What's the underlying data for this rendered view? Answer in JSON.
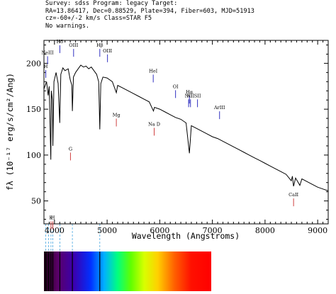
{
  "header": {
    "line1": "Survey: sdss  Program: legacy  Target:",
    "line2": "RA=13.86417, Dec=0.88529, Plate=394, Fiber=603, MJD=51913",
    "line3": "cz=-60+/-2 km/s  Class=STAR F5",
    "line4": "No warnings."
  },
  "chart_data": {
    "type": "line",
    "title": "",
    "xlabel": "Wavelength (Angstroms)",
    "ylabel": "fλ (10⁻¹⁷ erg/s/cm²/Ang)",
    "xlim": [
      3800,
      9200
    ],
    "ylim": [
      25,
      225
    ],
    "x_ticks": [
      4000,
      5000,
      6000,
      7000,
      8000,
      9000
    ],
    "y_ticks": [
      50,
      100,
      150,
      200
    ],
    "grid": false,
    "series": [
      {
        "color": "#000000",
        "points": [
          [
            3800,
            172
          ],
          [
            3850,
            180
          ],
          [
            3880,
            165
          ],
          [
            3900,
            175
          ],
          [
            3930,
            95
          ],
          [
            3940,
            170
          ],
          [
            3960,
            160
          ],
          [
            3970,
            110
          ],
          [
            3990,
            180
          ],
          [
            4030,
            190
          ],
          [
            4070,
            178
          ],
          [
            4100,
            135
          ],
          [
            4120,
            188
          ],
          [
            4160,
            195
          ],
          [
            4200,
            192
          ],
          [
            4260,
            194
          ],
          [
            4300,
            182
          ],
          [
            4330,
            176
          ],
          [
            4340,
            148
          ],
          [
            4360,
            185
          ],
          [
            4400,
            190
          ],
          [
            4450,
            194
          ],
          [
            4500,
            198
          ],
          [
            4550,
            196
          ],
          [
            4600,
            197
          ],
          [
            4650,
            194
          ],
          [
            4700,
            196
          ],
          [
            4750,
            192
          ],
          [
            4800,
            188
          ],
          [
            4840,
            180
          ],
          [
            4861,
            128
          ],
          [
            4880,
            178
          ],
          [
            4920,
            185
          ],
          [
            5000,
            184
          ],
          [
            5100,
            180
          ],
          [
            5175,
            168
          ],
          [
            5200,
            176
          ],
          [
            5300,
            173
          ],
          [
            5400,
            170
          ],
          [
            5500,
            167
          ],
          [
            5600,
            164
          ],
          [
            5700,
            161
          ],
          [
            5800,
            158
          ],
          [
            5880,
            148
          ],
          [
            5900,
            152
          ],
          [
            6000,
            150
          ],
          [
            6100,
            147
          ],
          [
            6200,
            144
          ],
          [
            6300,
            141
          ],
          [
            6400,
            139
          ],
          [
            6500,
            135
          ],
          [
            6563,
            102
          ],
          [
            6600,
            132
          ],
          [
            6700,
            129
          ],
          [
            6800,
            126
          ],
          [
            6900,
            123
          ],
          [
            7000,
            120
          ],
          [
            7100,
            118
          ],
          [
            7200,
            115
          ],
          [
            7300,
            112
          ],
          [
            7400,
            109
          ],
          [
            7500,
            106
          ],
          [
            7600,
            103
          ],
          [
            7700,
            100
          ],
          [
            7800,
            97
          ],
          [
            7900,
            94
          ],
          [
            8000,
            91
          ],
          [
            8100,
            88
          ],
          [
            8200,
            85
          ],
          [
            8300,
            82
          ],
          [
            8400,
            79
          ],
          [
            8498,
            72
          ],
          [
            8520,
            77
          ],
          [
            8542,
            66
          ],
          [
            8580,
            75
          ],
          [
            8662,
            67
          ],
          [
            8700,
            74
          ],
          [
            8800,
            71
          ],
          [
            8900,
            68
          ],
          [
            9000,
            65
          ],
          [
            9100,
            63
          ],
          [
            9200,
            61
          ]
        ]
      }
    ],
    "lines": [
      {
        "label": "H",
        "wave": 3835,
        "color": "#3030c0",
        "kind": "emission",
        "label_level": 195
      },
      {
        "label": "NeIII",
        "wave": 3869,
        "color": "#3030c0",
        "kind": "emission",
        "label_level": 210
      },
      {
        "label": "K",
        "wave": 3934,
        "color": "#d04040",
        "kind": "absorption",
        "label_level": 30
      },
      {
        "label": "H",
        "wave": 3969,
        "color": "#d04040",
        "kind": "absorption",
        "label_level": 30
      },
      {
        "label": "Hδ",
        "wave": 4102,
        "color": "#3030c0",
        "kind": "emission",
        "label_level": 222
      },
      {
        "label": "G",
        "wave": 4304,
        "color": "#d04040",
        "kind": "absorption",
        "label_level": 105
      },
      {
        "label": "OIII",
        "wave": 4363,
        "color": "#3030c0",
        "kind": "emission",
        "label_level": 218
      },
      {
        "label": "Hβ",
        "wave": 4861,
        "color": "#3030c0",
        "kind": "emission",
        "label_level": 218
      },
      {
        "label": "OIII",
        "wave": 5007,
        "color": "#3030c0",
        "kind": "emission",
        "label_level": 212
      },
      {
        "label": "Mg",
        "wave": 5175,
        "color": "#d04040",
        "kind": "absorption",
        "label_level": 142
      },
      {
        "label": "Na D",
        "wave": 5894,
        "color": "#d04040",
        "kind": "absorption",
        "label_level": 132
      },
      {
        "label": "HeI",
        "wave": 5876,
        "color": "#3030c0",
        "kind": "emission",
        "label_level": 190
      },
      {
        "label": "OI",
        "wave": 6300,
        "color": "#3030c0",
        "kind": "emission",
        "label_level": 173
      },
      {
        "label": "NII",
        "wave": 6548,
        "color": "#3030c0",
        "kind": "emission",
        "label_level": 163
      },
      {
        "label": "Hα",
        "wave": 6563,
        "color": "#3030c0",
        "kind": "emission",
        "label_level": 167
      },
      {
        "label": "NII",
        "wave": 6584,
        "color": "#3030c0",
        "kind": "emission",
        "label_level": 163
      },
      {
        "label": "SII",
        "wave": 6717,
        "color": "#3030c0",
        "kind": "emission",
        "label_level": 163
      },
      {
        "label": "ArIII",
        "wave": 7136,
        "color": "#3030c0",
        "kind": "emission",
        "label_level": 150
      },
      {
        "label": "CaII",
        "wave": 8542,
        "color": "#d04040",
        "kind": "absorption",
        "label_level": 55
      }
    ],
    "guide_lines": [
      3835,
      3889,
      3934,
      3969,
      4102,
      4340,
      4861
    ]
  }
}
